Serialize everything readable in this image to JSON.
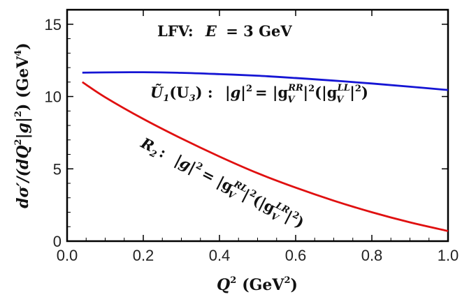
{
  "chart_data": {
    "type": "line",
    "title": "LFV: E = 3 GeV",
    "title_parts": {
      "prefix": "LFV:",
      "var": "E",
      "rest": "= 3 GeV"
    },
    "xlabel": "Q² (GeV²)",
    "xlabel_parts": {
      "var": "Q",
      "sup": "2",
      "unit": "(GeV",
      "unit_sup": "2",
      "unit_end": ")"
    },
    "ylabel": "dσ′/(dQ²|g|²) (GeV⁴)",
    "ylabel_parts": {
      "a": "dσ′/(dQ",
      "a_sup": "2",
      "b": "|g|",
      "b_sup": "2",
      "c": ") (GeV",
      "c_sup": "4",
      "d": ")"
    },
    "xlim": [
      0.0,
      1.0
    ],
    "ylim": [
      0,
      16
    ],
    "x_ticks": [
      "0.0",
      "0.2",
      "0.4",
      "0.6",
      "0.8",
      "1.0"
    ],
    "y_ticks": [
      "0",
      "5",
      "10",
      "15"
    ],
    "x_tick_values": [
      0.0,
      0.2,
      0.4,
      0.6,
      0.8,
      1.0
    ],
    "y_tick_values": [
      0,
      5,
      10,
      15
    ],
    "grid": false,
    "series": [
      {
        "color": "#1515d4",
        "x": [
          0.04,
          0.1,
          0.2,
          0.3,
          0.4,
          0.5,
          0.6,
          0.7,
          0.8,
          0.9,
          1.0
        ],
        "y": [
          11.65,
          11.67,
          11.68,
          11.64,
          11.55,
          11.44,
          11.28,
          11.1,
          10.9,
          10.68,
          10.45
        ]
      },
      {
        "color": "#e01010",
        "x": [
          0.04,
          0.1,
          0.2,
          0.3,
          0.4,
          0.5,
          0.6,
          0.7,
          0.8,
          0.9,
          1.0
        ],
        "y": [
          11.0,
          9.95,
          8.45,
          7.1,
          5.85,
          4.7,
          3.7,
          2.8,
          2.0,
          1.3,
          0.7
        ]
      }
    ],
    "annotations": {
      "blue_label": {
        "name": "Ũ",
        "name_sub": "1",
        "paren": "(U",
        "paren_sub": "3",
        "paren_end": ") :",
        "g": "|g|",
        "g_sup": "2",
        "eq": "= |g",
        "g1_sub": "V",
        "g1_sup": "RR",
        "mid": "|",
        "mid_sup": "2",
        "open": "(|g",
        "g2_sub": "V",
        "g2_sup": "LL",
        "close": "|",
        "close_sup": "2",
        "end": ")"
      },
      "red_label": {
        "name": "R",
        "name_sub": "2",
        "colon": ":",
        "g": "|g|",
        "g_sup": "2",
        "eq": "= |g",
        "g1_sub": "V",
        "g1_sup": "RL",
        "mid": "|",
        "mid_sup": "2",
        "open": "(|g",
        "g2_sub": "V",
        "g2_sup": "LR",
        "close": "|",
        "close_sup": "2",
        "end": ")"
      }
    }
  }
}
